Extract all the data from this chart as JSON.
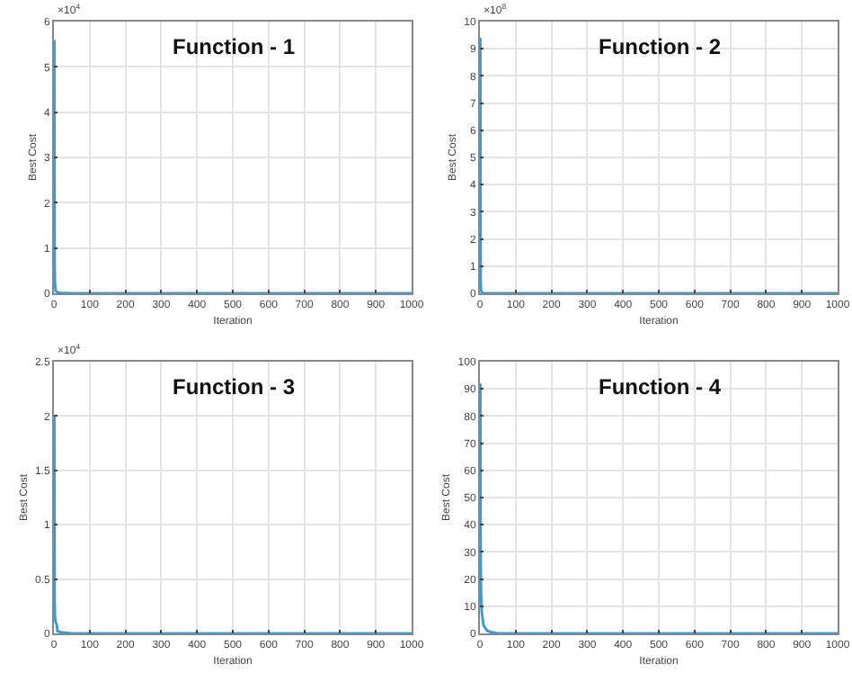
{
  "chart_data": [
    {
      "type": "line",
      "title": "Function - 1",
      "xlabel": "Iteration",
      "ylabel": "Best Cost",
      "annotations": [
        "×10$^{4}$"
      ],
      "grid": true,
      "xlim": [
        0,
        1000
      ],
      "xticks": [
        0,
        100,
        200,
        300,
        400,
        500,
        600,
        700,
        800,
        900,
        1000
      ],
      "ylim": [
        0,
        6
      ],
      "yticks": [
        0,
        1,
        2,
        3,
        4,
        5,
        6
      ],
      "series": [
        {
          "color": "#3d9bd4",
          "x": [
            1,
            2,
            3,
            5,
            10,
            20,
            50,
            100,
            1000
          ],
          "values": [
            5.6,
            0.6,
            0.2,
            0.05,
            0.02,
            0.01,
            0,
            0,
            0
          ]
        }
      ]
    },
    {
      "type": "line",
      "title": "Function - 2",
      "xlabel": "Iteration",
      "ylabel": "Best Cost",
      "annotations": [
        "×10$^{8}$"
      ],
      "grid": true,
      "xlim": [
        0,
        1000
      ],
      "xticks": [
        0,
        100,
        200,
        300,
        400,
        500,
        600,
        700,
        800,
        900,
        1000
      ],
      "ylim": [
        0,
        10
      ],
      "yticks": [
        0,
        1,
        2,
        3,
        4,
        5,
        6,
        7,
        8,
        9,
        10
      ],
      "series": [
        {
          "color": "#3d9bd4",
          "x": [
            1,
            2,
            3,
            5,
            10,
            20,
            50,
            100,
            1000
          ],
          "values": [
            9.4,
            0.5,
            0.1,
            0.05,
            0,
            0,
            0,
            0,
            0
          ]
        }
      ]
    },
    {
      "type": "line",
      "title": "Function - 3",
      "xlabel": "Iteration",
      "ylabel": "Best Cost",
      "annotations": [
        "×10$^{4}$"
      ],
      "grid": true,
      "xlim": [
        0,
        1000
      ],
      "xticks": [
        0,
        100,
        200,
        300,
        400,
        500,
        600,
        700,
        800,
        900,
        1000
      ],
      "ylim": [
        0,
        2.5
      ],
      "yticks": [
        0,
        0.5,
        1,
        1.5,
        2,
        2.5
      ],
      "series": [
        {
          "color": "#3d9bd4",
          "x": [
            1,
            2,
            3,
            5,
            8,
            10,
            20,
            50,
            100,
            1000
          ],
          "values": [
            2.0,
            0.3,
            0.15,
            0.1,
            0.08,
            0.02,
            0.01,
            0,
            0,
            0
          ]
        }
      ]
    },
    {
      "type": "line",
      "title": "Function - 4",
      "xlabel": "Iteration",
      "ylabel": "Best Cost",
      "grid": true,
      "xlim": [
        0,
        1000
      ],
      "xticks": [
        0,
        100,
        200,
        300,
        400,
        500,
        600,
        700,
        800,
        900,
        1000
      ],
      "ylim": [
        0,
        100
      ],
      "yticks": [
        0,
        10,
        20,
        30,
        40,
        50,
        60,
        70,
        80,
        90,
        100
      ],
      "series": [
        {
          "color": "#3d9bd4",
          "x": [
            1,
            2,
            3,
            5,
            10,
            20,
            30,
            50,
            100,
            1000
          ],
          "values": [
            92,
            30,
            15,
            8,
            3,
            1,
            0.5,
            0,
            0,
            0
          ]
        }
      ]
    }
  ]
}
